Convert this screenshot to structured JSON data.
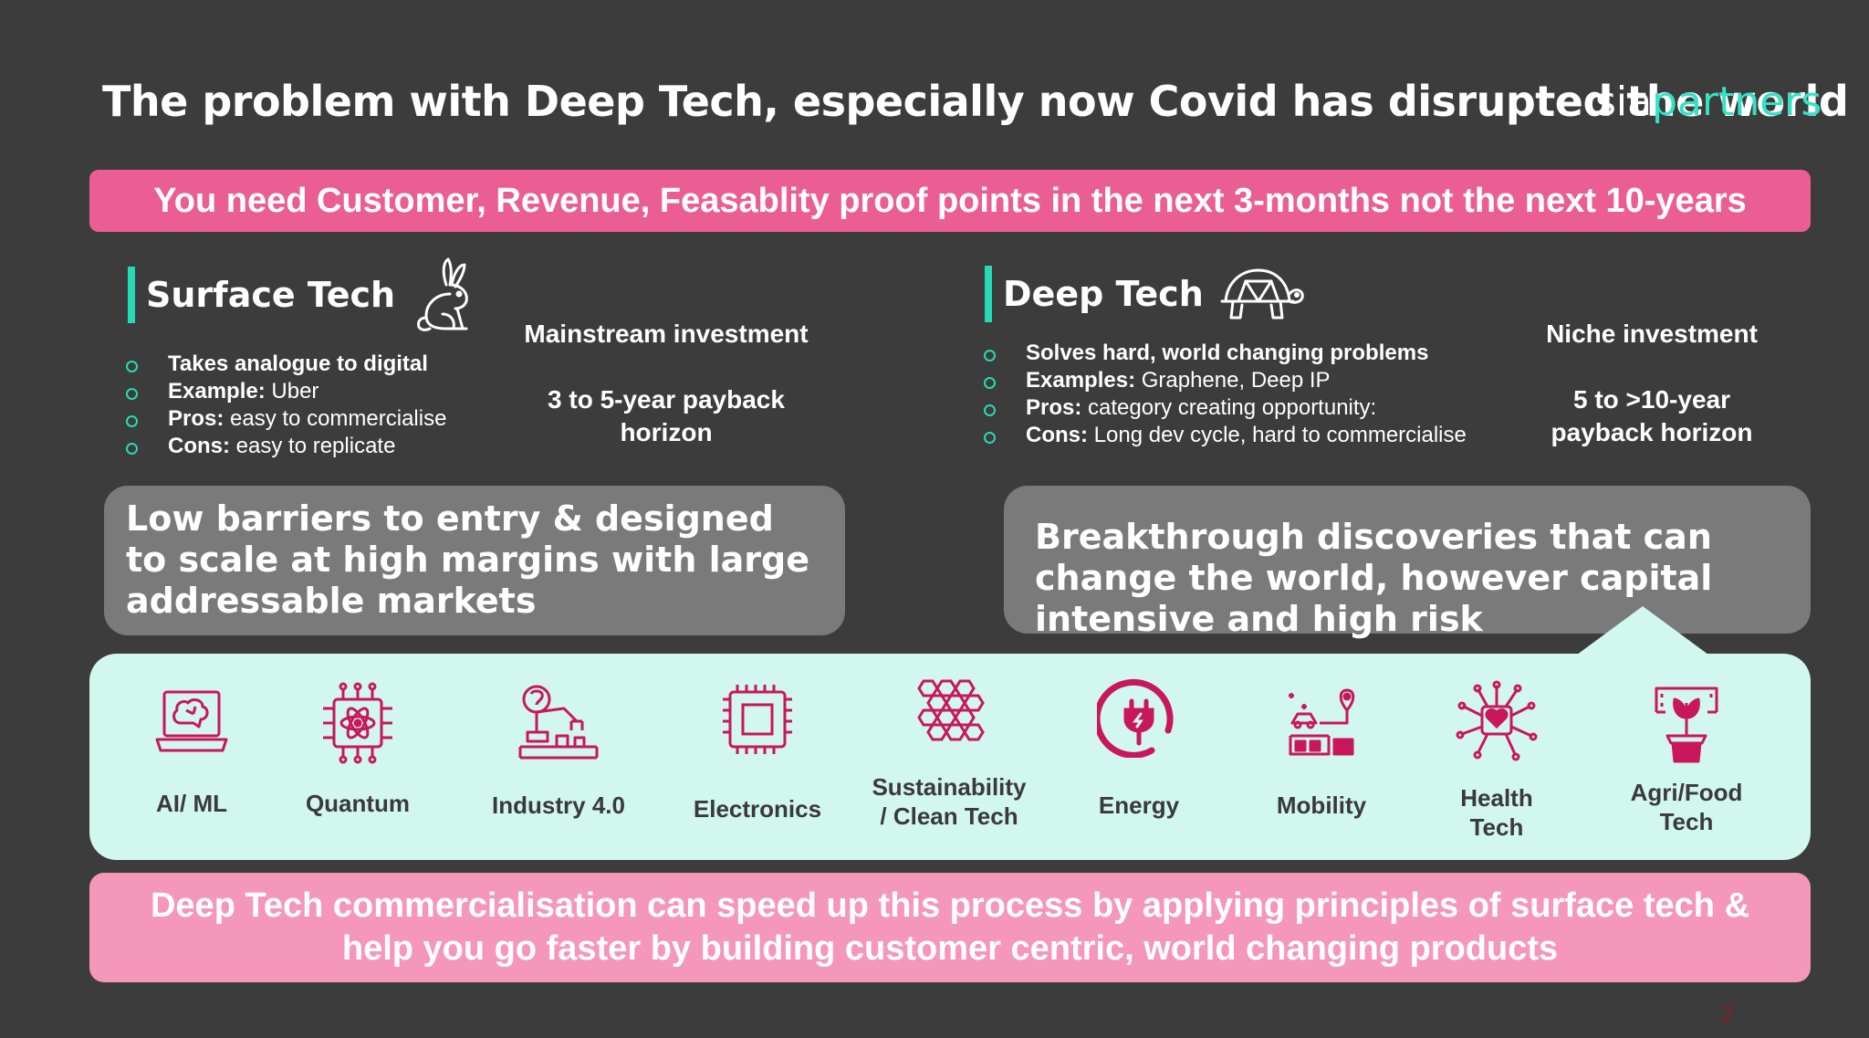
{
  "slide": {
    "title": "The problem with Deep Tech, especially now Covid has disrupted the world",
    "logo": {
      "part1": "sia",
      "part2": "partners"
    },
    "banner": "You need Customer, Revenue, Feasablity proof points in the next 3-months not the next 10-years",
    "surface": {
      "heading": "Surface Tech",
      "icon": "rabbit-icon",
      "bullets": [
        {
          "bold": "Takes analogue to digital",
          "text": ""
        },
        {
          "bold": "Example:",
          "text": " Uber"
        },
        {
          "bold": "Pros:",
          "text": " easy to commercialise"
        },
        {
          "bold": "Cons:",
          "text": " easy to replicate"
        }
      ],
      "investment": "Mainstream investment",
      "payback": [
        "3 to 5-year payback",
        "horizon"
      ],
      "summary": "Low barriers to entry & designed to scale at high margins with large addressable markets"
    },
    "deep": {
      "heading": "Deep Tech",
      "icon": "turtle-icon",
      "bullets": [
        {
          "bold": "Solves hard, world changing problems",
          "text": ""
        },
        {
          "bold": "Examples:",
          "text": " Graphene, Deep IP"
        },
        {
          "bold": "Pros:",
          "text": " category creating opportunity:"
        },
        {
          "bold": "Cons:",
          "text": " Long dev cycle, hard to commercialise"
        }
      ],
      "investment": "Niche investment",
      "payback": [
        "5 to >10-year",
        "payback horizon"
      ],
      "summary": "Breakthrough discoveries that can change the world, however capital intensive and high risk"
    },
    "categories": [
      {
        "label": [
          "AI/ ML"
        ],
        "icon": "ai-laptop-brain-icon"
      },
      {
        "label": [
          "Quantum"
        ],
        "icon": "quantum-chip-icon"
      },
      {
        "label": [
          "Industry 4.0"
        ],
        "icon": "robot-arm-icon"
      },
      {
        "label": [
          "Electronics"
        ],
        "icon": "microchip-icon"
      },
      {
        "label": [
          "Sustainability",
          "/ Clean Tech"
        ],
        "icon": "hexagon-grid-icon"
      },
      {
        "label": [
          "Energy"
        ],
        "icon": "power-plug-icon"
      },
      {
        "label": [
          "Mobility"
        ],
        "icon": "mobility-icon"
      },
      {
        "label": [
          "Health",
          "Tech"
        ],
        "icon": "health-circuit-icon"
      },
      {
        "label": [
          "Agri/Food",
          "Tech"
        ],
        "icon": "plant-icon"
      }
    ],
    "footer": [
      "Deep Tech commercialisation can speed up this process by applying principles of surface tech &",
      "help you go faster by building customer centric, world changing products"
    ],
    "page_number": "2",
    "colors": {
      "accent_pink": "#ea5e93",
      "light_pink": "#f497bb",
      "teal": "#27d9b4",
      "mint": "#d2f7ee",
      "icon_magenta": "#c8175d",
      "background": "#3c3c3c"
    }
  }
}
